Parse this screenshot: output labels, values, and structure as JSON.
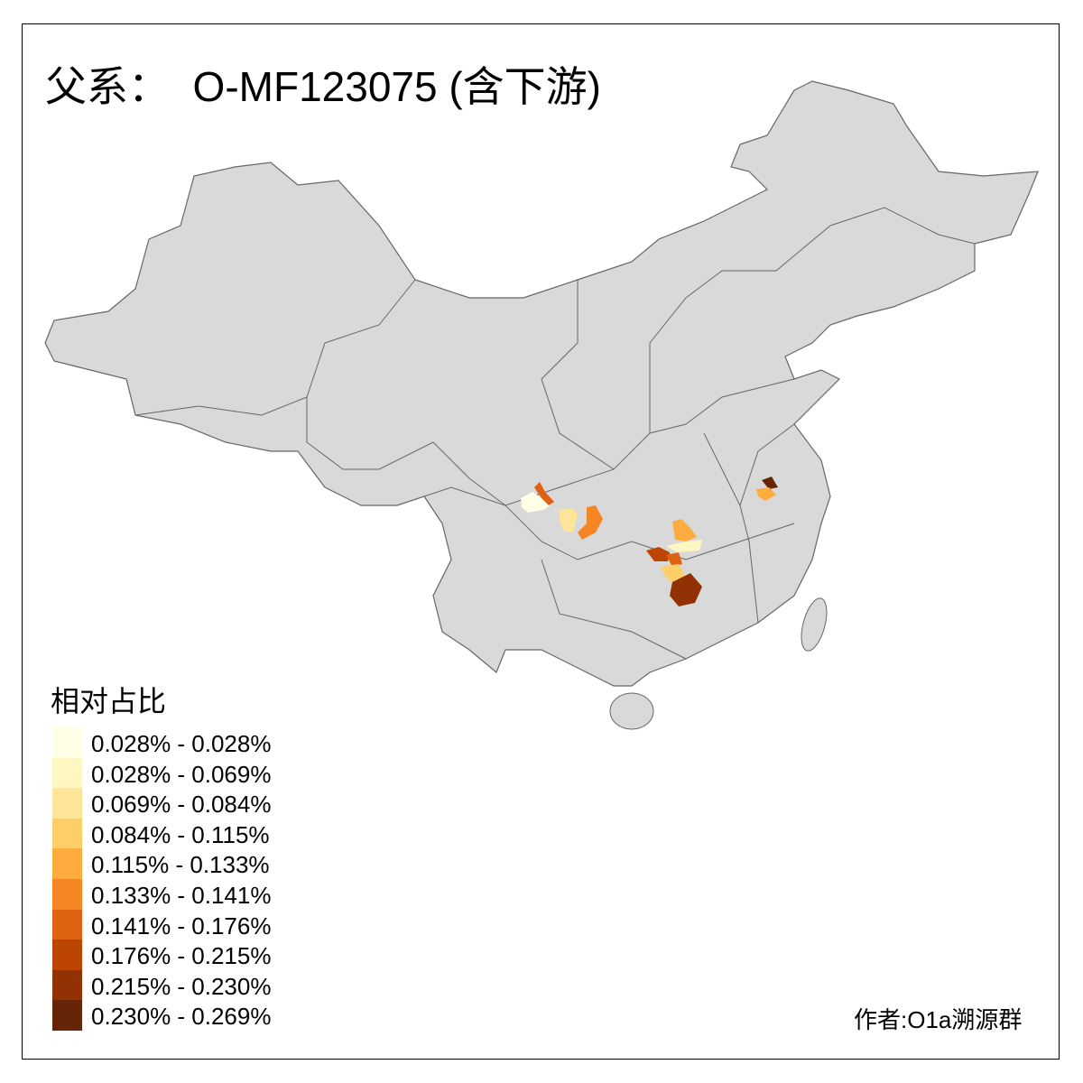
{
  "title": "父系：  O-MF123075 (含下游)",
  "legend": {
    "title": "相对占比",
    "items": [
      {
        "label": "0.028% - 0.028%",
        "color": "#FFFEE6"
      },
      {
        "label": "0.028% - 0.069%",
        "color": "#FFF7C1"
      },
      {
        "label": "0.069% - 0.084%",
        "color": "#FEE599"
      },
      {
        "label": "0.084% - 0.115%",
        "color": "#FECF69"
      },
      {
        "label": "0.115% - 0.133%",
        "color": "#FDAC3D"
      },
      {
        "label": "0.133% - 0.141%",
        "color": "#F48623"
      },
      {
        "label": "0.141% - 0.176%",
        "color": "#DF6212"
      },
      {
        "label": "0.176% - 0.215%",
        "color": "#BD4504"
      },
      {
        "label": "0.215% - 0.230%",
        "color": "#923204"
      },
      {
        "label": "0.230% - 0.269%",
        "color": "#662506"
      }
    ]
  },
  "map": {
    "base_color": "#D9D9D9",
    "border_color": "#666666"
  },
  "credit": "作者:O1a溯源群"
}
